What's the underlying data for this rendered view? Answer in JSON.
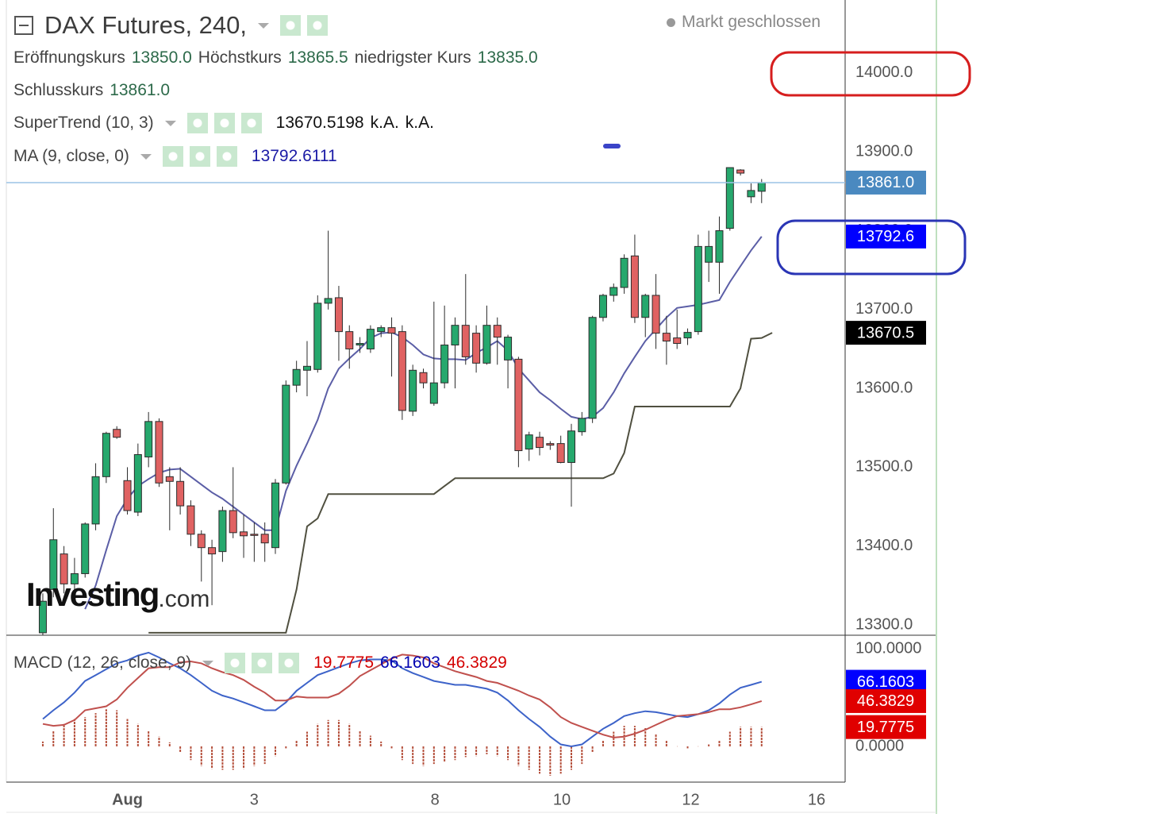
{
  "header": {
    "title": "DAX Futures, 240,",
    "status": "Markt geschlossen",
    "ohlc": [
      {
        "label": "Eröffnungskurs",
        "value": "13850.0"
      },
      {
        "label": "Höchstkurs",
        "value": "13865.5"
      },
      {
        "label": "niedrigster Kurs",
        "value": "13835.0"
      },
      {
        "label": "Schlusskurs",
        "value": "13861.0"
      }
    ]
  },
  "watermark": {
    "brand": "Investing",
    "suffix": ".com"
  },
  "chart_data": [
    {
      "type": "candlestick",
      "open": [
        13290,
        13345,
        13390,
        13352,
        13365,
        13428,
        13488,
        13548,
        13483,
        13443,
        13513,
        13558,
        13488,
        13482,
        13451,
        13415,
        13398,
        13393,
        13445,
        13418,
        13415,
        13415,
        13398,
        13480,
        13604,
        13623,
        13624,
        13708,
        13715,
        13672,
        13655,
        13650,
        13672,
        13677,
        13672,
        13571,
        13620,
        13581,
        13607,
        13655,
        13680,
        13670,
        13632,
        13680,
        13636,
        13637,
        13523,
        13538,
        13530,
        13530,
        13506,
        13545,
        13562,
        13690,
        13718,
        13728,
        13768,
        13690,
        13718,
        13670,
        13664,
        13664,
        13672,
        13760,
        13760,
        13803,
        13877,
        13843,
        13850
      ],
      "high": [
        13340,
        13448,
        13400,
        13385,
        13430,
        13505,
        13545,
        13552,
        13500,
        13530,
        13570,
        13562,
        13500,
        13500,
        13458,
        13420,
        13408,
        13450,
        13500,
        13440,
        13430,
        13430,
        13485,
        13610,
        13635,
        13660,
        13718,
        13800,
        13730,
        13680,
        13665,
        13680,
        13680,
        13690,
        13680,
        13630,
        13625,
        13710,
        13705,
        13690,
        13745,
        13680,
        13705,
        13690,
        13668,
        13640,
        13545,
        13545,
        13533,
        13540,
        13555,
        13570,
        13692,
        13720,
        13733,
        13770,
        13795,
        13720,
        13745,
        13692,
        13700,
        13676,
        13795,
        13800,
        13818,
        13880,
        13878,
        13860,
        13865.5
      ],
      "low": [
        13280,
        13335,
        13340,
        13345,
        13360,
        13420,
        13480,
        13536,
        13440,
        13438,
        13500,
        13475,
        13420,
        13440,
        13400,
        13355,
        13325,
        13380,
        13410,
        13385,
        13380,
        13380,
        13390,
        13478,
        13595,
        13590,
        13620,
        13700,
        13635,
        13625,
        13645,
        13645,
        13665,
        13615,
        13560,
        13565,
        13600,
        13578,
        13600,
        13600,
        13630,
        13620,
        13630,
        13630,
        13600,
        13500,
        13508,
        13515,
        13522,
        13505,
        13450,
        13540,
        13556,
        13685,
        13710,
        13720,
        13683,
        13665,
        13650,
        13630,
        13650,
        13655,
        13668,
        13735,
        13720,
        13800,
        13870,
        13835,
        13835
      ],
      "close": [
        13330,
        13408,
        13352,
        13365,
        13428,
        13488,
        13543,
        13538,
        13445,
        13516,
        13558,
        13480,
        13482,
        13451,
        13415,
        13398,
        13390,
        13445,
        13417,
        13413,
        13414,
        13404,
        13480,
        13604,
        13624,
        13628,
        13708,
        13714,
        13672,
        13650,
        13657,
        13675,
        13677,
        13670,
        13572,
        13623,
        13607,
        13607,
        13655,
        13680,
        13640,
        13632,
        13680,
        13665,
        13665,
        13521,
        13541,
        13525,
        13528,
        13506,
        13546,
        13562,
        13690,
        13718,
        13728,
        13765,
        13690,
        13718,
        13670,
        13660,
        13657,
        13671,
        13780,
        13780,
        13800,
        13880,
        13873,
        13851,
        13861
      ],
      "up_color": "#26a86d",
      "down_color": "#e06262",
      "series": [
        {
          "name": "SuperTrend (10, 3)",
          "color": "#505040",
          "legend_values": [
            "13670.5198",
            "k.A.",
            "k.A."
          ],
          "values": [
            null,
            null,
            null,
            null,
            null,
            null,
            null,
            null,
            null,
            null,
            13290,
            13290,
            13290,
            13290,
            13290,
            13290,
            13290,
            13290,
            13290,
            13290,
            13290,
            13290,
            13290,
            13290,
            13345,
            13425,
            13435,
            13466,
            13466,
            13466,
            13466,
            13466,
            13466,
            13466,
            13466,
            13466,
            13466,
            13466,
            13476,
            13486,
            13486,
            13486,
            13486,
            13486,
            13486,
            13486,
            13486,
            13486,
            13486,
            13486,
            13486,
            13486,
            13486,
            13486,
            13492,
            13518,
            13577,
            13577,
            13577,
            13577,
            13577,
            13577,
            13577,
            13577,
            13577,
            13577,
            13600,
            13663,
            13664,
            13670.5198
          ]
        },
        {
          "name": "MA (9, close, 0)",
          "color": "#5b5ea6",
          "legend_values": [
            "13792.6111"
          ],
          "values": [
            null,
            null,
            null,
            null,
            13320,
            13350,
            13395,
            13438,
            13460,
            13476,
            13485,
            13493,
            13497,
            13498,
            13488,
            13478,
            13468,
            13460,
            13450,
            13440,
            13430,
            13420,
            13420,
            13470,
            13502,
            13530,
            13560,
            13600,
            13625,
            13638,
            13650,
            13664,
            13670,
            13671,
            13665,
            13655,
            13643,
            13638,
            13637,
            13637,
            13636,
            13645,
            13652,
            13660,
            13648,
            13625,
            13610,
            13595,
            13585,
            13574,
            13564,
            13561,
            13564,
            13575,
            13595,
            13619,
            13640,
            13660,
            13675,
            13690,
            13702,
            13704,
            13706,
            13709,
            13712,
            13735,
            13755,
            13775,
            13792.6
          ]
        }
      ],
      "xlim": [
        -3.45,
        75.9
      ],
      "ylim": [
        13286.9,
        14092.6
      ],
      "yticks": [
        {
          "value": 13300,
          "label": "13300.0"
        },
        {
          "value": 13400,
          "label": "13400.0"
        },
        {
          "value": 13500,
          "label": "13500.0"
        },
        {
          "value": 13600,
          "label": "13600.0"
        },
        {
          "value": 13700,
          "label": "13700.0"
        },
        {
          "value": 13800,
          "label": "13800.0"
        },
        {
          "value": 13900,
          "label": "13900.0"
        },
        {
          "value": 14000,
          "label": "14000.0"
        }
      ],
      "price_labels": [
        {
          "value": 13861,
          "label": "13861.0",
          "color": "#4a89c0",
          "line": true
        },
        {
          "value": 13792.6,
          "label": "13792.6",
          "color": "#0000ff",
          "line": false
        },
        {
          "value": 13670.5,
          "label": "13670.5",
          "color": "#000000",
          "line": false
        }
      ]
    },
    {
      "type": "macd",
      "title": "MACD (12, 26, close, 9)",
      "legend_values": [
        {
          "text": "19.7775",
          "color": "#d40000"
        },
        {
          "text": "66.1603",
          "color": "#0000b0"
        },
        {
          "text": "46.3829",
          "color": "#d40000"
        }
      ],
      "series": [
        {
          "kind": "bar",
          "color": "#b5503c",
          "values": [
            5,
            16,
            23,
            28,
            30,
            34,
            38,
            37,
            28,
            23,
            16,
            10,
            4,
            -6,
            -14,
            -20,
            -23,
            -24,
            -24,
            -23,
            -20,
            -18,
            -10,
            -2,
            6,
            15,
            23,
            27,
            27,
            23,
            16,
            11,
            5,
            -2,
            -14,
            -18,
            -20,
            -18,
            -16,
            -14,
            -11,
            -10,
            -8,
            -10,
            -14,
            -20,
            -24,
            -28,
            -30,
            -28,
            -24,
            -18,
            -6,
            6,
            15,
            21,
            21,
            19,
            13,
            6,
            0,
            -2,
            0,
            2,
            6,
            15,
            20,
            20,
            19.7775
          ]
        },
        {
          "kind": "line",
          "color": "#3d63c9",
          "values": [
            28,
            37,
            45,
            55,
            67,
            73,
            79,
            85,
            88,
            93,
            96,
            91,
            85,
            80,
            73,
            65,
            57,
            52,
            49,
            45,
            41,
            37,
            37,
            45,
            57,
            65,
            73,
            77,
            81,
            85,
            88,
            89,
            89,
            88,
            80,
            75,
            71,
            67,
            65,
            63,
            63,
            61,
            59,
            55,
            47,
            37,
            28,
            20,
            10,
            2,
            0,
            2,
            10,
            18,
            24,
            31,
            34,
            36,
            35,
            33,
            31,
            30,
            33,
            37,
            44,
            53,
            60,
            63,
            66.1603
          ]
        },
        {
          "kind": "line",
          "color": "#c0504d",
          "values": [
            23,
            21,
            22,
            27,
            37,
            39,
            41,
            48,
            60,
            70,
            80,
            81,
            81,
            86,
            87,
            85,
            80,
            76,
            73,
            68,
            61,
            55,
            47,
            47,
            51,
            50,
            50,
            50,
            54,
            62,
            72,
            78,
            84,
            90,
            94,
            93,
            91,
            85,
            81,
            77,
            74,
            71,
            67,
            65,
            61,
            57,
            52,
            48,
            40,
            30,
            24,
            20,
            16,
            12,
            9,
            10,
            13,
            17,
            22,
            27,
            31,
            32,
            33,
            35,
            38,
            38,
            40,
            43,
            46.3829
          ]
        }
      ],
      "xlim": [
        -3.45,
        75.9
      ],
      "ylim": [
        -36.6,
        113.8
      ],
      "yticks": [
        {
          "value": 100,
          "label": "100.0000"
        },
        {
          "value": 0,
          "label": "0.0000"
        }
      ],
      "xticks": [
        {
          "value": 8,
          "label": "Aug"
        },
        {
          "value": 20,
          "label": "3"
        },
        {
          "value": 37.1,
          "label": "8"
        },
        {
          "value": 49.1,
          "label": "10"
        },
        {
          "value": 61.3,
          "label": "12"
        },
        {
          "value": 73.2,
          "label": "16"
        }
      ],
      "price_labels": [
        {
          "value": 66.1603,
          "color": "#0000ff"
        },
        {
          "value": 46.3829,
          "color": "#e00000"
        },
        {
          "value": 19.7775,
          "color": "#e00000"
        }
      ]
    }
  ]
}
